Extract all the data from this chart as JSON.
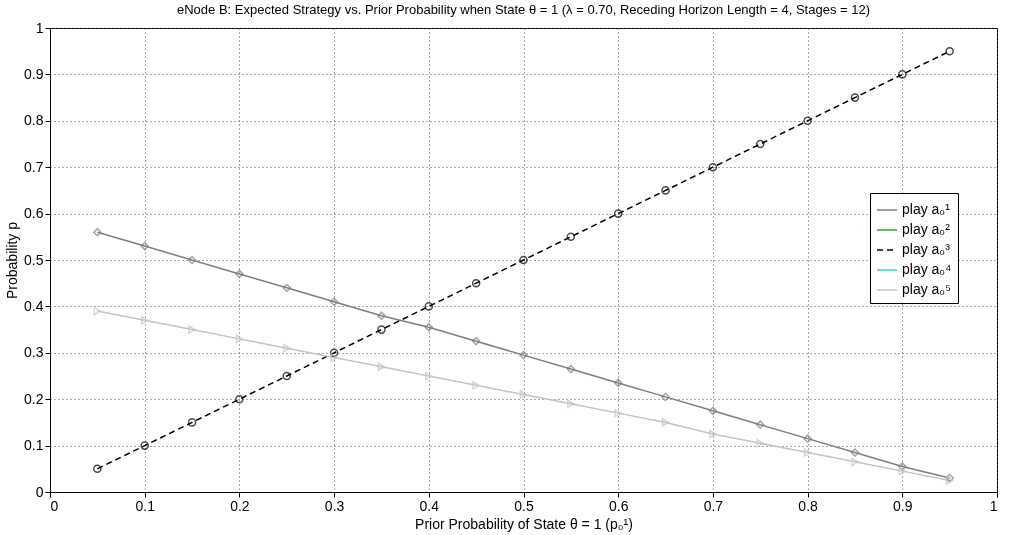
{
  "chart_data": {
    "type": "line",
    "title": "eNode B: Expected Strategy vs. Prior Probability when State θ = 1 (λ = 0.70, Receding Horizon Length = 4, Stages = 12)",
    "xlabel": "Prior Probability of State θ = 1 (p₀¹)",
    "ylabel": "Probability p",
    "x": [
      0.05,
      0.1,
      0.15,
      0.2,
      0.25,
      0.3,
      0.35,
      0.4,
      0.45,
      0.5,
      0.55,
      0.6,
      0.65,
      0.7,
      0.75,
      0.8,
      0.85,
      0.9,
      0.95
    ],
    "series": [
      {
        "name": "play a₀¹",
        "color": "#7f7f7f",
        "marker": "diamond",
        "line_style": "solid",
        "values": [
          0.56,
          0.53,
          0.5,
          0.47,
          0.44,
          0.41,
          0.38,
          0.355,
          0.325,
          0.295,
          0.265,
          0.235,
          0.205,
          0.175,
          0.145,
          0.115,
          0.085,
          0.055,
          0.03
        ]
      },
      {
        "name": "play a₀²",
        "color": "#3c9a3c",
        "marker": "none",
        "line_style": "solid",
        "values": [
          null,
          null,
          null,
          null,
          null,
          null,
          null,
          null,
          null,
          null,
          null,
          null,
          null,
          null,
          null,
          null,
          null,
          null,
          null
        ]
      },
      {
        "name": "play a₀³",
        "color": "#000000",
        "marker": "circle",
        "line_style": "dashed",
        "values": [
          0.05,
          0.1,
          0.15,
          0.2,
          0.25,
          0.3,
          0.35,
          0.4,
          0.45,
          0.5,
          0.55,
          0.6,
          0.65,
          0.7,
          0.75,
          0.8,
          0.85,
          0.9,
          0.95
        ]
      },
      {
        "name": "play a₀⁴",
        "color": "#40d0c8",
        "marker": "none",
        "line_style": "solid",
        "values": [
          null,
          null,
          null,
          null,
          null,
          null,
          null,
          null,
          null,
          null,
          null,
          null,
          null,
          null,
          null,
          null,
          null,
          null,
          null
        ]
      },
      {
        "name": "play a₀⁵",
        "color": "#c8c4bc",
        "marker": "triangle",
        "line_style": "solid",
        "values": [
          0.39,
          0.37,
          0.35,
          0.33,
          0.31,
          0.29,
          0.27,
          0.25,
          0.23,
          0.21,
          0.19,
          0.17,
          0.15,
          0.125,
          0.105,
          0.085,
          0.065,
          0.045,
          0.025
        ]
      }
    ],
    "xlim": [
      0,
      1
    ],
    "ylim": [
      0,
      1
    ],
    "xticks": [
      0,
      0.1,
      0.2,
      0.3,
      0.4,
      0.5,
      0.6,
      0.7,
      0.8,
      0.9,
      1
    ],
    "yticks": [
      0,
      0.1,
      0.2,
      0.3,
      0.4,
      0.5,
      0.6,
      0.7,
      0.8,
      0.9,
      1
    ],
    "grid": true,
    "legend": "right"
  }
}
